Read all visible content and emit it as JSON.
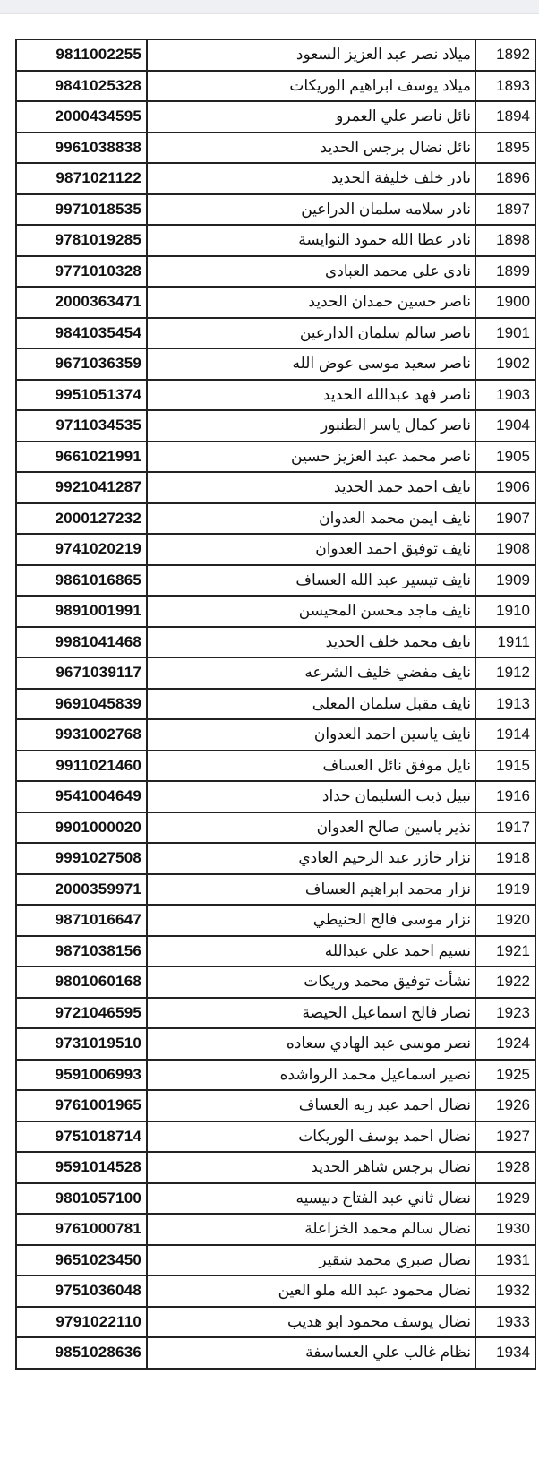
{
  "rows": [
    {
      "id": "1892",
      "name": "ميلاد نصر عبد العزيز السعود",
      "number": "9811002255"
    },
    {
      "id": "1893",
      "name": "ميلاد يوسف ابراهيم الوريكات",
      "number": "9841025328"
    },
    {
      "id": "1894",
      "name": "نائل ناصر علي العمرو",
      "number": "2000434595"
    },
    {
      "id": "1895",
      "name": "نائل نضال برجس الحديد",
      "number": "9961038838"
    },
    {
      "id": "1896",
      "name": "نادر خلف خليفة الحديد",
      "number": "9871021122"
    },
    {
      "id": "1897",
      "name": "نادر سلامه سلمان الدراعين",
      "number": "9971018535"
    },
    {
      "id": "1898",
      "name": "نادر عطا الله حمود النوايسة",
      "number": "9781019285"
    },
    {
      "id": "1899",
      "name": "نادي علي محمد العبادي",
      "number": "9771010328"
    },
    {
      "id": "1900",
      "name": "ناصر حسين حمدان الحديد",
      "number": "2000363471"
    },
    {
      "id": "1901",
      "name": "ناصر سالم سلمان الدارعين",
      "number": "9841035454"
    },
    {
      "id": "1902",
      "name": "ناصر سعيد موسى عوض الله",
      "number": "9671036359"
    },
    {
      "id": "1903",
      "name": "ناصر فهد عبدالله الحديد",
      "number": "9951051374"
    },
    {
      "id": "1904",
      "name": "ناصر كمال ياسر الطنبور",
      "number": "9711034535"
    },
    {
      "id": "1905",
      "name": "ناصر محمد عبد العزيز حسين",
      "number": "9661021991"
    },
    {
      "id": "1906",
      "name": "نايف احمد حمد الحديد",
      "number": "9921041287"
    },
    {
      "id": "1907",
      "name": "نايف ايمن محمد العدوان",
      "number": "2000127232"
    },
    {
      "id": "1908",
      "name": "نايف توفيق احمد العدوان",
      "number": "9741020219"
    },
    {
      "id": "1909",
      "name": "نايف تيسير عبد الله العساف",
      "number": "9861016865"
    },
    {
      "id": "1910",
      "name": "نايف ماجد محسن المحيسن",
      "number": "9891001991"
    },
    {
      "id": "1911",
      "name": "نايف محمد خلف الحديد",
      "number": "9981041468"
    },
    {
      "id": "1912",
      "name": "نايف مفضي خليف الشرعه",
      "number": "9671039117"
    },
    {
      "id": "1913",
      "name": "نايف مقبل سلمان المعلى",
      "number": "9691045839"
    },
    {
      "id": "1914",
      "name": "نايف ياسين احمد العدوان",
      "number": "9931002768"
    },
    {
      "id": "1915",
      "name": "نايل موفق نائل العساف",
      "number": "9911021460"
    },
    {
      "id": "1916",
      "name": "نبيل ذيب السليمان حداد",
      "number": "9541004649"
    },
    {
      "id": "1917",
      "name": "نذير ياسين صالح العدوان",
      "number": "9901000020"
    },
    {
      "id": "1918",
      "name": "نزار خازر عبد الرحيم العادي",
      "number": "9991027508"
    },
    {
      "id": "1919",
      "name": "نزار محمد ابراهيم العساف",
      "number": "2000359971"
    },
    {
      "id": "1920",
      "name": "نزار موسى فالح الحنيطي",
      "number": "9871016647"
    },
    {
      "id": "1921",
      "name": "نسيم احمد علي عبدالله",
      "number": "9871038156"
    },
    {
      "id": "1922",
      "name": "نشأت توفيق محمد وريكات",
      "number": "9801060168"
    },
    {
      "id": "1923",
      "name": "نصار فالح اسماعيل الحيصة",
      "number": "9721046595"
    },
    {
      "id": "1924",
      "name": "نصر موسى عبد الهادي سعاده",
      "number": "9731019510"
    },
    {
      "id": "1925",
      "name": "نصير اسماعيل محمد الرواشده",
      "number": "9591006993"
    },
    {
      "id": "1926",
      "name": "نضال احمد عبد ربه العساف",
      "number": "9761001965"
    },
    {
      "id": "1927",
      "name": "نضال احمد يوسف الوريكات",
      "number": "9751018714"
    },
    {
      "id": "1928",
      "name": "نضال برجس شاهر الحديد",
      "number": "9591014528"
    },
    {
      "id": "1929",
      "name": "نضال ثاني عبد الفتاح دبيسيه",
      "number": "9801057100"
    },
    {
      "id": "1930",
      "name": "نضال سالم محمد الخزاعلة",
      "number": "9761000781"
    },
    {
      "id": "1931",
      "name": "نضال صبري محمد شقير",
      "number": "9651023450"
    },
    {
      "id": "1932",
      "name": "نضال محمود عبد الله ملو العين",
      "number": "9751036048"
    },
    {
      "id": "1933",
      "name": "نضال يوسف محمود ابو هديب",
      "number": "9791022110"
    },
    {
      "id": "1934",
      "name": "نظام غالب علي العساسفة",
      "number": "9851028636"
    }
  ]
}
